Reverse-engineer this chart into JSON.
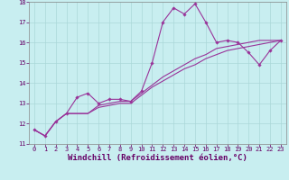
{
  "xlabel": "Windchill (Refroidissement éolien,°C)",
  "bg_color": "#c8eef0",
  "line_color": "#993399",
  "xlim": [
    -0.5,
    23.5
  ],
  "ylim": [
    11,
    18
  ],
  "xticks": [
    0,
    1,
    2,
    3,
    4,
    5,
    6,
    7,
    8,
    9,
    10,
    11,
    12,
    13,
    14,
    15,
    16,
    17,
    18,
    19,
    20,
    21,
    22,
    23
  ],
  "yticks": [
    11,
    12,
    13,
    14,
    15,
    16,
    17,
    18
  ],
  "main_x": [
    0,
    1,
    2,
    3,
    4,
    5,
    6,
    7,
    8,
    9,
    10,
    11,
    12,
    13,
    14,
    15,
    16,
    17,
    18,
    19,
    20,
    21,
    22,
    23
  ],
  "main_y": [
    11.7,
    11.4,
    12.1,
    12.5,
    13.3,
    13.5,
    13.0,
    13.2,
    13.2,
    13.1,
    13.6,
    15.0,
    17.0,
    17.7,
    17.4,
    17.9,
    17.0,
    16.0,
    16.1,
    16.0,
    15.5,
    14.9,
    15.6,
    16.1
  ],
  "line2_x": [
    0,
    1,
    2,
    3,
    4,
    5,
    6,
    7,
    8,
    9,
    10,
    11,
    12,
    13,
    14,
    15,
    16,
    17,
    18,
    19,
    20,
    21,
    22,
    23
  ],
  "line2_y": [
    11.7,
    11.4,
    12.1,
    12.5,
    12.5,
    12.5,
    12.9,
    13.0,
    13.1,
    13.1,
    13.5,
    13.9,
    14.3,
    14.6,
    14.9,
    15.2,
    15.4,
    15.7,
    15.8,
    15.9,
    16.0,
    16.1,
    16.1,
    16.1
  ],
  "line3_x": [
    0,
    1,
    2,
    3,
    4,
    5,
    6,
    7,
    8,
    9,
    10,
    11,
    12,
    13,
    14,
    15,
    16,
    17,
    18,
    19,
    20,
    21,
    22,
    23
  ],
  "line3_y": [
    11.7,
    11.4,
    12.1,
    12.5,
    12.5,
    12.5,
    12.8,
    12.9,
    13.0,
    13.0,
    13.4,
    13.8,
    14.1,
    14.4,
    14.7,
    14.9,
    15.2,
    15.4,
    15.6,
    15.7,
    15.8,
    15.9,
    16.0,
    16.1
  ],
  "grid_color": "#aad8d8",
  "tick_fontsize": 5.0,
  "xlabel_fontsize": 6.5
}
